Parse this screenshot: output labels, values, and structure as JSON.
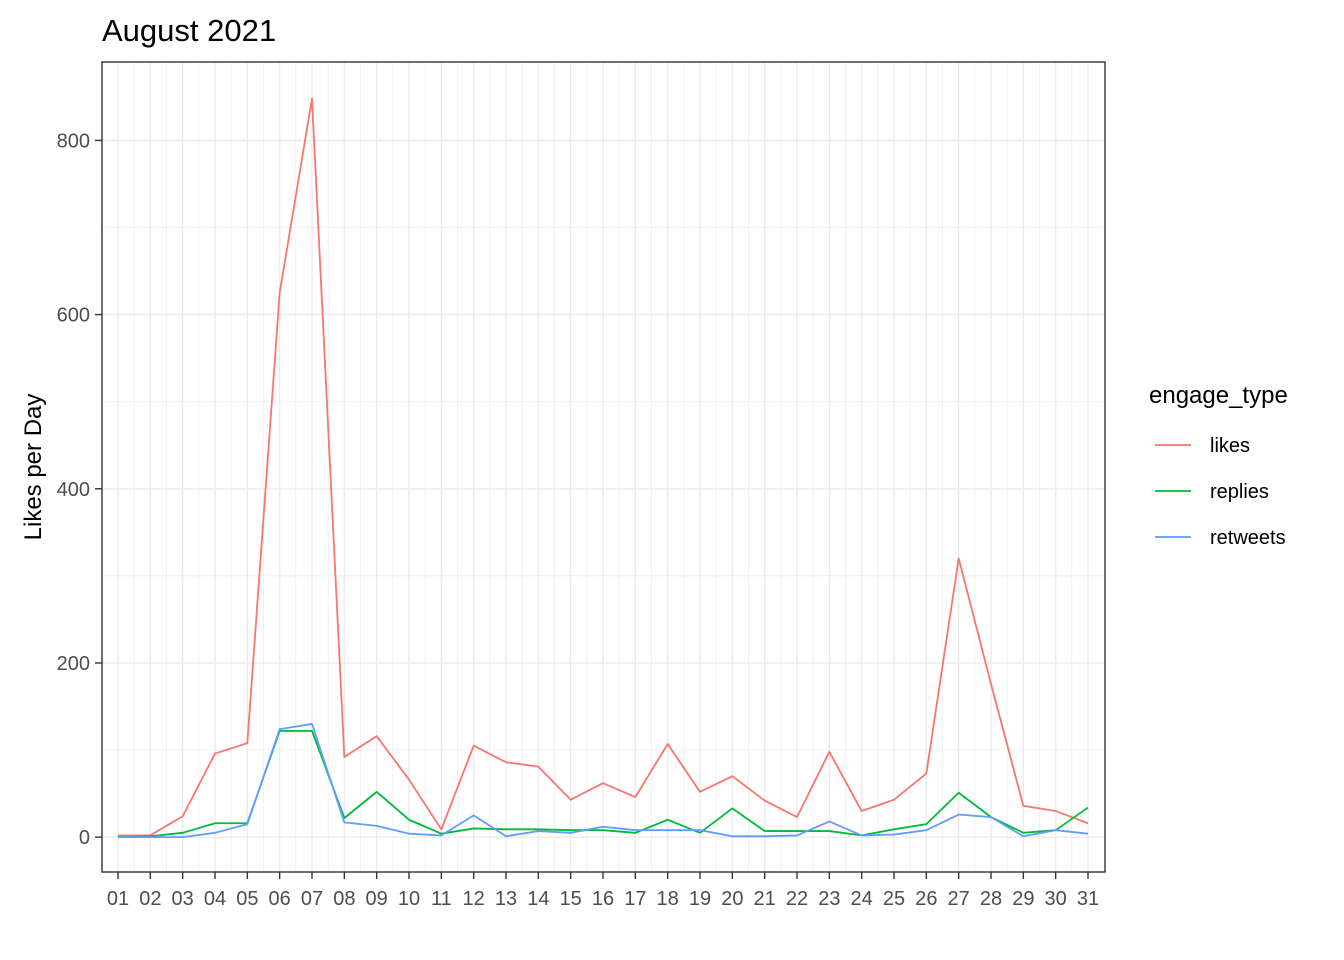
{
  "chart_data": {
    "type": "line",
    "title": "August 2021",
    "xlabel": "",
    "ylabel": "Likes per Day",
    "categories": [
      "01",
      "02",
      "03",
      "04",
      "05",
      "06",
      "07",
      "08",
      "09",
      "10",
      "11",
      "12",
      "13",
      "14",
      "15",
      "16",
      "17",
      "18",
      "19",
      "20",
      "21",
      "22",
      "23",
      "24",
      "25",
      "26",
      "27",
      "28",
      "29",
      "30",
      "31"
    ],
    "ylim": [
      -40,
      890
    ],
    "yticks": [
      0,
      200,
      400,
      600,
      800
    ],
    "grid": true,
    "legend": {
      "title": "engage_type",
      "position": "right"
    },
    "series": [
      {
        "name": "likes",
        "color": "#F8766D",
        "values": [
          2,
          2,
          24,
          96,
          108,
          625,
          848,
          92,
          116,
          66,
          9,
          105,
          86,
          81,
          43,
          62,
          46,
          107,
          52,
          70,
          42,
          23,
          98,
          30,
          43,
          73,
          320,
          176,
          36,
          30,
          16
        ]
      },
      {
        "name": "replies",
        "color": "#00BA38",
        "values": [
          0,
          1,
          5,
          16,
          16,
          122,
          122,
          22,
          52,
          20,
          4,
          10,
          9,
          9,
          8,
          8,
          5,
          20,
          5,
          33,
          7,
          7,
          7,
          2,
          9,
          15,
          51,
          23,
          5,
          8,
          34
        ]
      },
      {
        "name": "retweets",
        "color": "#619CFF",
        "values": [
          0,
          0,
          0,
          5,
          15,
          124,
          130,
          17,
          13,
          4,
          2,
          25,
          1,
          7,
          5,
          12,
          8,
          8,
          8,
          1,
          1,
          2,
          18,
          2,
          3,
          8,
          26,
          23,
          1,
          8,
          4
        ]
      }
    ]
  }
}
